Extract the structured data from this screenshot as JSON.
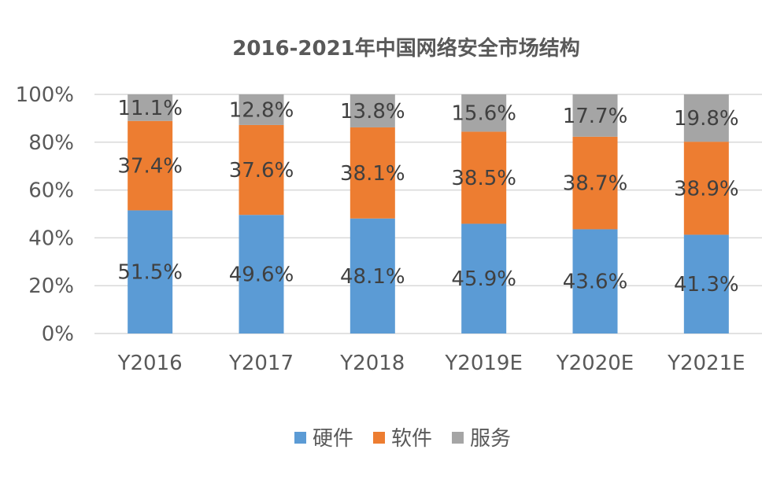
{
  "chart_data": {
    "type": "bar",
    "stacked": true,
    "title": "2016-2021年中国网络安全市场结构",
    "categories": [
      "Y2016",
      "Y2017",
      "Y2018",
      "Y2019E",
      "Y2020E",
      "Y2021E"
    ],
    "series": [
      {
        "name": "硬件",
        "color": "#5b9bd5",
        "values": [
          51.5,
          49.6,
          48.1,
          45.9,
          43.6,
          41.3
        ],
        "labels": [
          "51.5%",
          "49.6%",
          "48.1%",
          "45.9%",
          "43.6%",
          "41.3%"
        ]
      },
      {
        "name": "软件",
        "color": "#ed7d31",
        "values": [
          37.4,
          37.6,
          38.1,
          38.5,
          38.7,
          38.9
        ],
        "labels": [
          "37.4%",
          "37.6%",
          "38.1%",
          "38.5%",
          "38.7%",
          "38.9%"
        ]
      },
      {
        "name": "服务",
        "color": "#a5a5a5",
        "values": [
          11.1,
          12.8,
          13.8,
          15.6,
          17.7,
          19.8
        ],
        "labels": [
          "11.1%",
          "12.8%",
          "13.8%",
          "15.6%",
          "17.7%",
          "19.8%"
        ]
      }
    ],
    "ylim": [
      0,
      100
    ],
    "yticks": [
      "0%",
      "20%",
      "40%",
      "60%",
      "80%",
      "100%"
    ],
    "xlabel": "",
    "ylabel": "",
    "grid": true,
    "legend_position": "bottom"
  }
}
